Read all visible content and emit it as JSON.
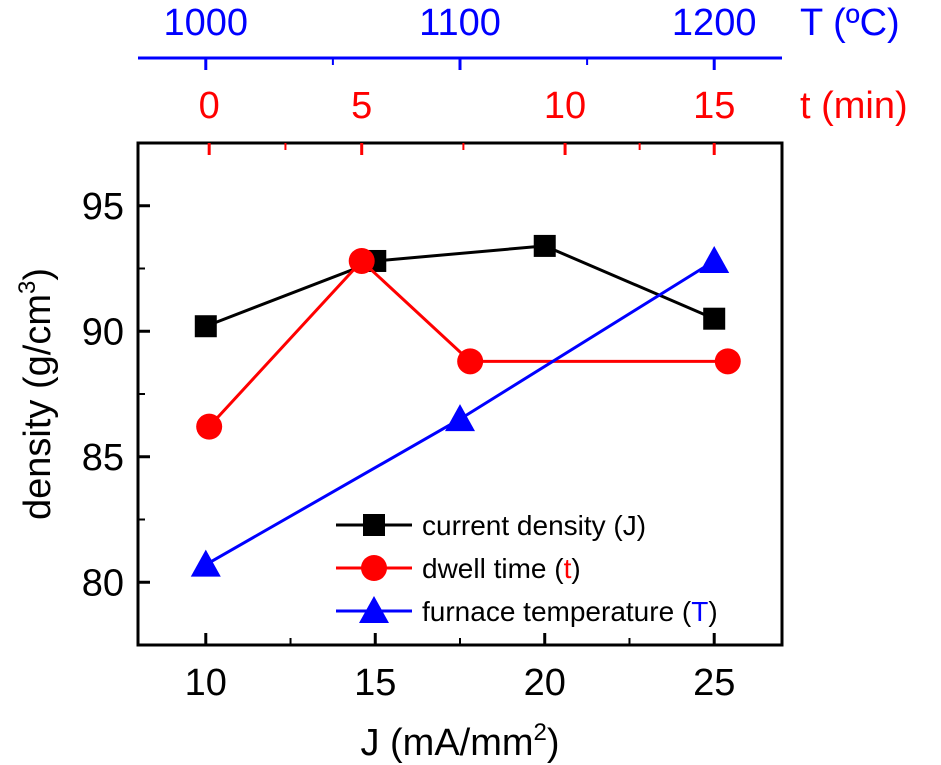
{
  "chart_data": {
    "type": "line",
    "xlabel": "J (mA/mm",
    "xlabel_sup": "2",
    "xlabel_close": ")",
    "ylabel": "density (g/cm",
    "ylabel_sup": "3",
    "ylabel_close": ")",
    "xlim": [
      8,
      27
    ],
    "ylim": [
      77.5,
      97.5
    ],
    "x_ticks": [
      10,
      15,
      20,
      25
    ],
    "x_tick_labels": [
      "10",
      "15",
      "20",
      "25"
    ],
    "y_ticks": [
      80,
      85,
      90,
      95
    ],
    "y_tick_labels": [
      "80",
      "85",
      "90",
      "95"
    ],
    "top_axis_time": {
      "label": "t (min)",
      "color": "#ff0000",
      "ticks": [
        0,
        5,
        10,
        15
      ],
      "tick_labels": [
        "0",
        "5",
        "10",
        "15"
      ],
      "tick_j_positions": [
        10.1,
        14.6,
        20.6,
        25.0
      ]
    },
    "top_axis_temperature": {
      "label": "T (ºC)",
      "color": "#0000ff",
      "ticks": [
        1000,
        1100,
        1200
      ],
      "tick_labels": [
        "1000",
        "1100",
        "1200"
      ],
      "tick_j_positions": [
        10.0,
        17.5,
        25.0
      ]
    },
    "series": [
      {
        "name": "current density (J)",
        "color": "#000000",
        "marker": "square",
        "x": [
          10,
          15,
          20,
          25
        ],
        "y": [
          90.2,
          92.8,
          93.4,
          90.5
        ]
      },
      {
        "name": "dwell time (t)",
        "color": "#ff0000",
        "marker": "circle",
        "x": [
          10.1,
          14.6,
          17.8,
          25.4
        ],
        "y": [
          86.2,
          92.8,
          88.8,
          88.8
        ]
      },
      {
        "name": "furnace temperature (T)",
        "color": "#0000ff",
        "marker": "triangle",
        "x": [
          10.0,
          17.5,
          25.0
        ],
        "y": [
          80.7,
          86.5,
          92.8
        ]
      }
    ],
    "legend": {
      "position": "bottom-right",
      "entries": [
        {
          "prefix": "current density (J)",
          "highlight": "",
          "suffix": "",
          "highlight_color": "#000000"
        },
        {
          "prefix": "dwell time (",
          "highlight": "t",
          "suffix": ")",
          "highlight_color": "#ff0000"
        },
        {
          "prefix": "furnace temperature (",
          "highlight": "T",
          "suffix": ")",
          "highlight_color": "#0000ff"
        }
      ]
    }
  }
}
